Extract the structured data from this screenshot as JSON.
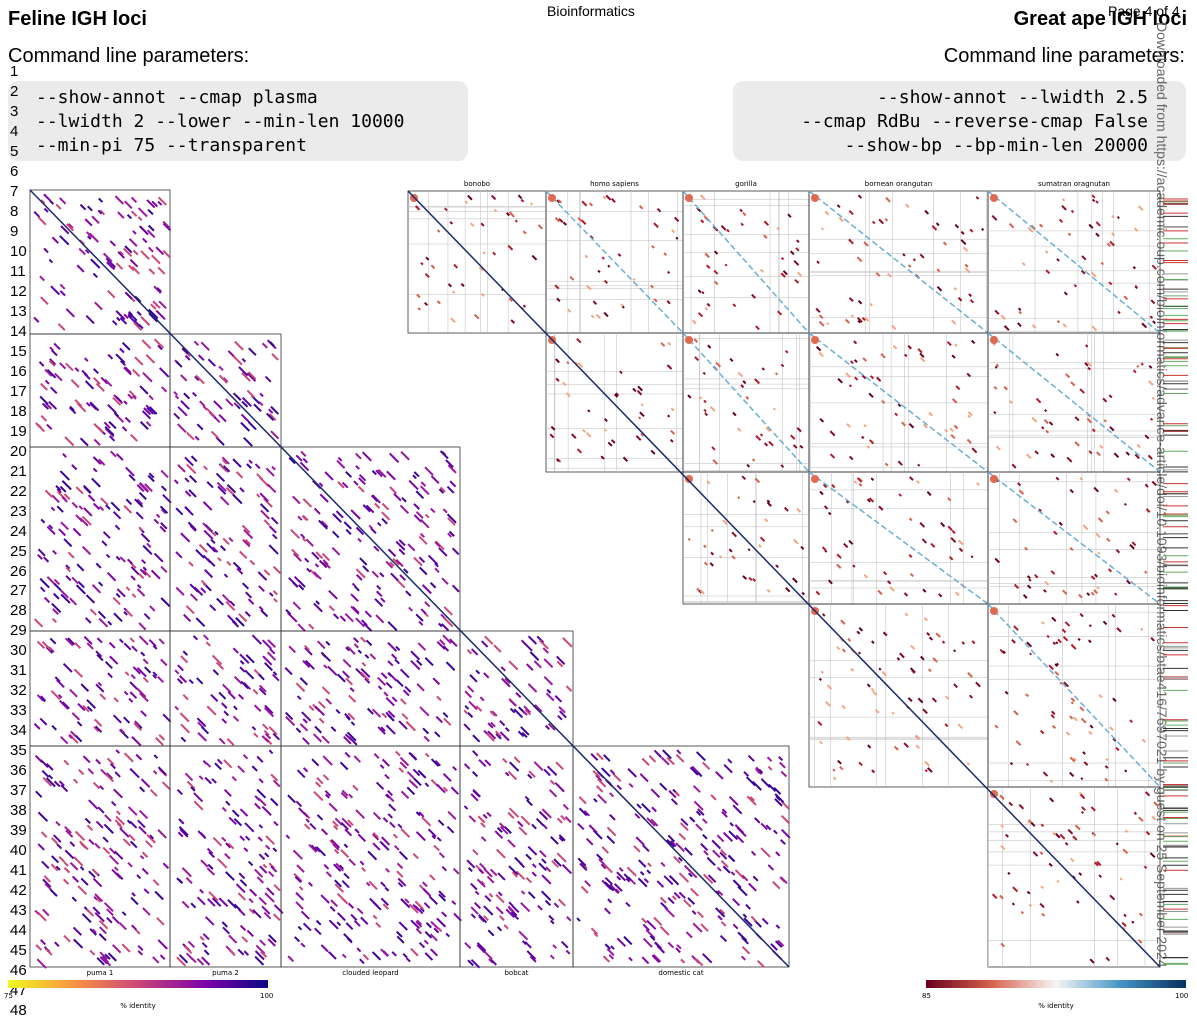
{
  "header": {
    "journal": "Bioinformatics",
    "page": "Page 4 of 4"
  },
  "left": {
    "title": "Feline IGH loci",
    "params_label": "Command line parameters:",
    "params": [
      "--show-annot --cmap plasma",
      "--lwidth 2 --lower --min-len 10000",
      "--min-pi 75 --transparent"
    ],
    "species": [
      "puma 1",
      "puma 2",
      "clouded leopard",
      "bobcat",
      "domestic cat"
    ],
    "colorbar": {
      "min": "75",
      "max": "100",
      "label": "% identity"
    }
  },
  "right": {
    "title": "Great ape IGH loci",
    "params_label": "Command line parameters:",
    "params": [
      "--show-annot --lwidth 2.5",
      "--cmap RdBu --reverse-cmap False",
      "--show-bp --bp-min-len 20000"
    ],
    "species": [
      "bonobo",
      "homo sapiens",
      "gorilla",
      "bornean orangutan",
      "sumatran oragnutan"
    ],
    "colorbar": {
      "min": "85",
      "max": "100",
      "label": "% identity"
    }
  },
  "line_numbers": [
    1,
    2,
    3,
    4,
    5,
    6,
    7,
    8,
    9,
    10,
    11,
    12,
    13,
    14,
    15,
    16,
    17,
    18,
    19,
    20,
    21,
    22,
    23,
    24,
    25,
    26,
    27,
    28,
    29,
    30,
    31,
    32,
    33,
    34,
    35,
    36,
    37,
    38,
    39,
    40,
    41,
    42,
    43,
    44,
    45,
    46,
    47,
    48
  ],
  "side_note": "Downloaded from https://academic.oup.com/bioinformatics/advance-article/doi/10.1093/bioinformatics/btae416/7697021 by guest on 25 September 2024"
}
